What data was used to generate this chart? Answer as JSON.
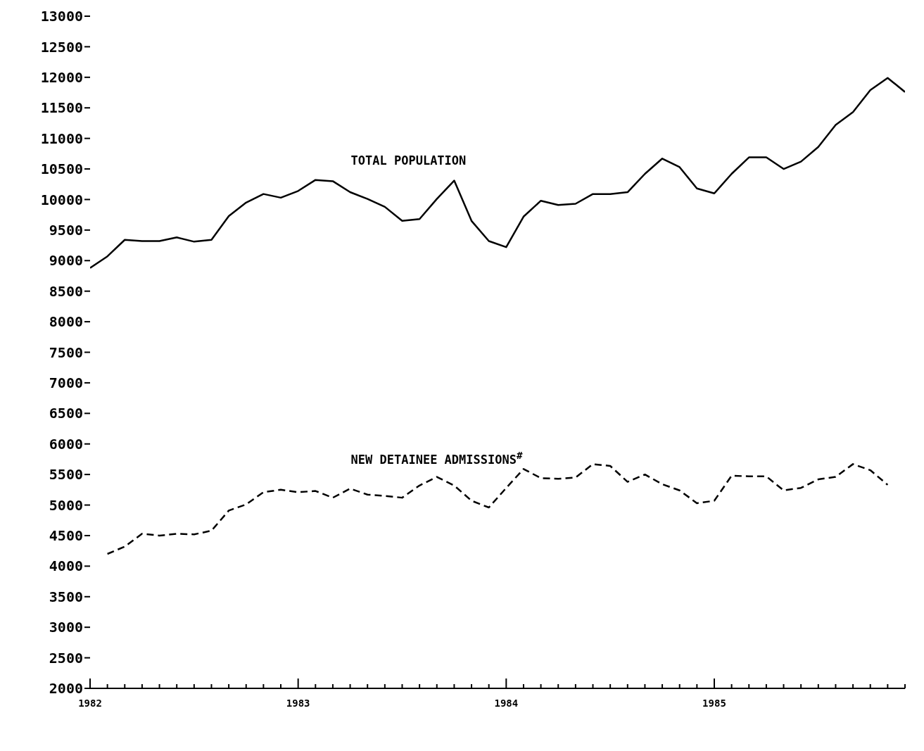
{
  "chart_data": {
    "type": "line",
    "xlim": [
      "1982-01",
      "1985-12"
    ],
    "xticks": [
      {
        "value": "1982-01",
        "label": "1982"
      },
      {
        "value": "1982-02",
        "label": null
      },
      {
        "value": "1982-03",
        "label": null
      },
      {
        "value": "1982-04",
        "label": null
      },
      {
        "value": "1982-05",
        "label": null
      },
      {
        "value": "1982-06",
        "label": null
      },
      {
        "value": "1982-07",
        "label": null
      },
      {
        "value": "1982-08",
        "label": null
      },
      {
        "value": "1982-09",
        "label": null
      },
      {
        "value": "1982-10",
        "label": null
      },
      {
        "value": "1982-11",
        "label": null
      },
      {
        "value": "1982-12",
        "label": null
      },
      {
        "value": "1983-01",
        "label": "1983"
      },
      {
        "value": "1983-02",
        "label": null
      },
      {
        "value": "1983-03",
        "label": null
      },
      {
        "value": "1983-04",
        "label": null
      },
      {
        "value": "1983-05",
        "label": null
      },
      {
        "value": "1983-06",
        "label": null
      },
      {
        "value": "1983-07",
        "label": null
      },
      {
        "value": "1983-08",
        "label": null
      },
      {
        "value": "1983-09",
        "label": null
      },
      {
        "value": "1983-10",
        "label": null
      },
      {
        "value": "1983-11",
        "label": null
      },
      {
        "value": "1983-12",
        "label": null
      },
      {
        "value": "1984-01",
        "label": "1984"
      },
      {
        "value": "1984-02",
        "label": null
      },
      {
        "value": "1984-03",
        "label": null
      },
      {
        "value": "1984-04",
        "label": null
      },
      {
        "value": "1984-05",
        "label": null
      },
      {
        "value": "1984-06",
        "label": null
      },
      {
        "value": "1984-07",
        "label": null
      },
      {
        "value": "1984-08",
        "label": null
      },
      {
        "value": "1984-09",
        "label": null
      },
      {
        "value": "1984-10",
        "label": null
      },
      {
        "value": "1984-11",
        "label": null
      },
      {
        "value": "1984-12",
        "label": null
      },
      {
        "value": "1985-01",
        "label": "1985"
      },
      {
        "value": "1985-02",
        "label": null
      },
      {
        "value": "1985-03",
        "label": null
      },
      {
        "value": "1985-04",
        "label": null
      },
      {
        "value": "1985-05",
        "label": null
      },
      {
        "value": "1985-06",
        "label": null
      },
      {
        "value": "1985-07",
        "label": null
      },
      {
        "value": "1985-08",
        "label": null
      },
      {
        "value": "1985-09",
        "label": null
      },
      {
        "value": "1985-10",
        "label": null
      },
      {
        "value": "1985-11",
        "label": null
      },
      {
        "value": "1985-12",
        "label": null
      }
    ],
    "ylim": [
      2000,
      13000
    ],
    "yticks": [
      2000,
      2500,
      3000,
      3500,
      4000,
      4500,
      5000,
      5500,
      6000,
      6500,
      7000,
      7500,
      8000,
      8500,
      9000,
      9500,
      10000,
      10500,
      11000,
      11500,
      12000,
      12500,
      13000
    ],
    "grid": false,
    "legend": false,
    "marker": "none",
    "series": [
      {
        "name": "TOTAL POPULATION",
        "color": "#000000",
        "line_style": "solid",
        "x": [
          "1982-01",
          "1982-02",
          "1982-03",
          "1982-04",
          "1982-05",
          "1982-06",
          "1982-07",
          "1982-08",
          "1982-09",
          "1982-10",
          "1982-11",
          "1982-12",
          "1983-01",
          "1983-02",
          "1983-03",
          "1983-04",
          "1983-05",
          "1983-06",
          "1983-07",
          "1983-08",
          "1983-09",
          "1983-10",
          "1983-11",
          "1983-12",
          "1984-01",
          "1984-02",
          "1984-03",
          "1984-04",
          "1984-05",
          "1984-06",
          "1984-07",
          "1984-08",
          "1984-09",
          "1984-10",
          "1984-11",
          "1984-12",
          "1985-01",
          "1985-02",
          "1985-03",
          "1985-04",
          "1985-05",
          "1985-06",
          "1985-07",
          "1985-08",
          "1985-09",
          "1985-10",
          "1985-11",
          "1985-12"
        ],
        "values": [
          8880,
          9070,
          9340,
          9320,
          9320,
          9380,
          9310,
          9340,
          9730,
          9950,
          10090,
          10030,
          10140,
          10320,
          10300,
          10120,
          10010,
          9880,
          9650,
          9680,
          10010,
          10310,
          9650,
          9320,
          9220,
          9720,
          9980,
          9910,
          9930,
          10090,
          10090,
          10120,
          10420,
          10670,
          10530,
          10180,
          10100,
          10420,
          10690,
          10690,
          10500,
          10620,
          10860,
          11220,
          11430,
          11790,
          11990,
          11760
        ]
      },
      {
        "name": "NEW DETAINEE ADMISSIONS$^{#}$",
        "color": "#000000",
        "line_style": "dashed",
        "x": [
          "1982-02",
          "1982-03",
          "1982-04",
          "1982-05",
          "1982-06",
          "1982-07",
          "1982-08",
          "1982-09",
          "1982-10",
          "1982-11",
          "1982-12",
          "1983-01",
          "1983-02",
          "1983-03",
          "1983-04",
          "1983-05",
          "1983-06",
          "1983-07",
          "1983-08",
          "1983-09",
          "1983-10",
          "1983-11",
          "1983-12",
          "1984-01",
          "1984-02",
          "1984-03",
          "1984-04",
          "1984-05",
          "1984-06",
          "1984-07",
          "1984-08",
          "1984-09",
          "1984-10",
          "1984-11",
          "1984-12",
          "1985-01",
          "1985-02",
          "1985-03",
          "1985-04",
          "1985-05",
          "1985-06",
          "1985-07",
          "1985-08",
          "1985-09",
          "1985-10",
          "1985-11"
        ],
        "values": [
          4200,
          4320,
          4530,
          4500,
          4530,
          4520,
          4580,
          4910,
          5010,
          5210,
          5250,
          5210,
          5230,
          5120,
          5270,
          5170,
          5150,
          5120,
          5320,
          5460,
          5320,
          5070,
          4960,
          5280,
          5590,
          5440,
          5430,
          5450,
          5670,
          5640,
          5380,
          5500,
          5340,
          5240,
          5030,
          5070,
          5480,
          5470,
          5470,
          5240,
          5280,
          5420,
          5460,
          5670,
          5570,
          5330
        ]
      }
    ]
  }
}
